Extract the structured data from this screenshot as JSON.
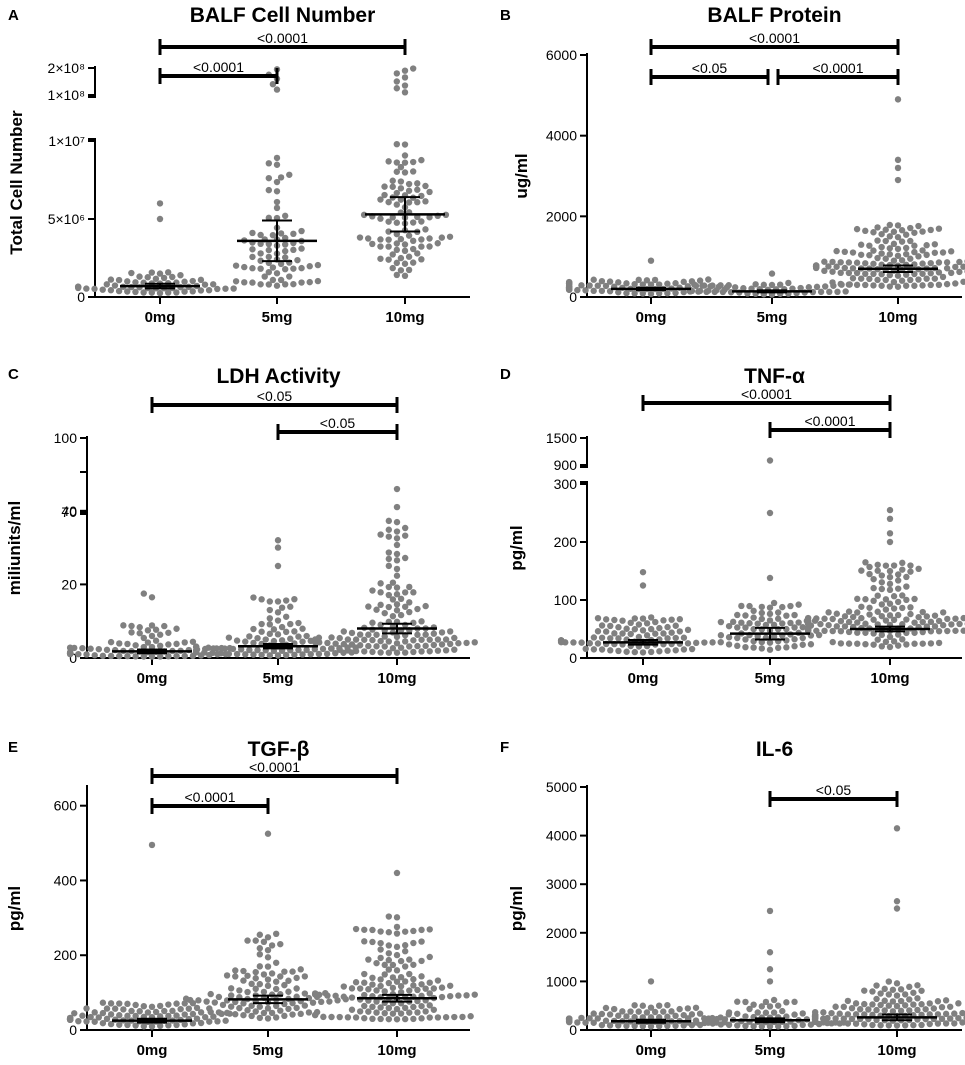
{
  "chart_data": [
    {
      "type": "scatter",
      "panel": "A",
      "title": "BALF Cell Number",
      "ylabel": "Total Cell Number",
      "categories": [
        "0mg",
        "5mg",
        "10mg"
      ],
      "axis_break": true,
      "ylim_lower": [
        0,
        10000000
      ],
      "ylim_upper": [
        100000000,
        200000000
      ],
      "yticks_lower": [
        {
          "v": 0,
          "label": "0"
        },
        {
          "v": 5000000,
          "label": "5×10⁶"
        },
        {
          "v": 10000000,
          "label": "1×10⁷"
        }
      ],
      "yticks_upper": [
        {
          "v": 100000000,
          "label": "1×10⁸"
        },
        {
          "v": 200000000,
          "label": "2×10⁸"
        }
      ],
      "summary": [
        {
          "mean": 700000,
          "err": 150000
        },
        {
          "mean": 3600000,
          "err": 1300000
        },
        {
          "mean": 5300000,
          "err": 1100000
        }
      ],
      "comparisons": [
        {
          "from": 0,
          "to": 2,
          "label": "<0.0001"
        },
        {
          "from": 0,
          "to": 1,
          "label": "<0.0001"
        }
      ],
      "points": [
        {
          "n": 60,
          "median": 450000,
          "max": 1600000,
          "outliers": [
            5000000,
            6000000
          ]
        },
        {
          "n": 75,
          "median": 1500000,
          "max": 9000000,
          "outliers": [
            120000000,
            140000000,
            160000000,
            175000000,
            195000000
          ]
        },
        {
          "n": 95,
          "median": 2800000,
          "max": 9800000,
          "outliers": [
            110000000,
            125000000,
            135000000,
            150000000,
            165000000,
            180000000,
            190000000,
            198000000
          ]
        }
      ]
    },
    {
      "type": "scatter",
      "panel": "B",
      "title": "BALF Protein",
      "ylabel": "ug/ml",
      "categories": [
        "0mg",
        "5mg",
        "10mg"
      ],
      "axis_break": false,
      "ylim": [
        0,
        6000
      ],
      "yticks": [
        {
          "v": 0,
          "label": "0"
        },
        {
          "v": 2000,
          "label": "2000"
        },
        {
          "v": 4000,
          "label": "4000"
        },
        {
          "v": 6000,
          "label": "6000"
        }
      ],
      "summary": [
        {
          "mean": 200,
          "err": 25
        },
        {
          "mean": 140,
          "err": 25
        },
        {
          "mean": 700,
          "err": 80
        }
      ],
      "comparisons": [
        {
          "from": 0,
          "to": 2,
          "label": "<0.0001"
        },
        {
          "from": 0,
          "to": 1,
          "label": "<0.05"
        },
        {
          "from": 1,
          "to": 2,
          "label": "<0.0001"
        }
      ],
      "points": [
        {
          "n": 95,
          "median": 160,
          "max": 450,
          "outliers": [
            900
          ]
        },
        {
          "n": 60,
          "median": 110,
          "max": 350,
          "outliers": [
            580
          ]
        },
        {
          "n": 150,
          "median": 500,
          "max": 1800,
          "outliers": [
            2900,
            3200,
            3400,
            4900
          ]
        }
      ]
    },
    {
      "type": "scatter",
      "panel": "C",
      "title": "LDH Activity",
      "ylabel": "miliunits/ml",
      "categories": [
        "0mg",
        "5mg",
        "10mg"
      ],
      "axis_break": true,
      "ylim_lower": [
        0,
        50
      ],
      "ylim_upper": [
        70,
        100
      ],
      "yticks_lower": [
        {
          "v": 0,
          "label": "0"
        },
        {
          "v": 20,
          "label": "20"
        },
        {
          "v": 40,
          "label": "40"
        }
      ],
      "yticks_upper": [
        {
          "v": 70,
          "label": "70"
        },
        {
          "v": 100,
          "label": "100"
        }
      ],
      "summary": [
        {
          "mean": 1.8,
          "err": 0.5
        },
        {
          "mean": 3.2,
          "err": 0.6
        },
        {
          "mean": 8.0,
          "err": 1.3
        }
      ],
      "comparisons": [
        {
          "from": 0,
          "to": 2,
          "label": "<0.05"
        },
        {
          "from": 1,
          "to": 2,
          "label": "<0.05"
        }
      ],
      "points": [
        {
          "n": 85,
          "median": 0.8,
          "max": 9,
          "outliers": [
            16.5,
            17.5
          ]
        },
        {
          "n": 95,
          "median": 1.5,
          "max": 17,
          "outliers": [
            25,
            30,
            32
          ]
        },
        {
          "n": 130,
          "median": 3,
          "max": 46,
          "outliers": [
            72
          ]
        }
      ]
    },
    {
      "type": "scatter",
      "panel": "D",
      "title": "TNF-α",
      "ylabel": "pg/ml",
      "categories": [
        "0mg",
        "5mg",
        "10mg"
      ],
      "axis_break": true,
      "ylim_lower": [
        0,
        300
      ],
      "ylim_upper": [
        900,
        1500
      ],
      "yticks_lower": [
        {
          "v": 0,
          "label": "0"
        },
        {
          "v": 100,
          "label": "100"
        },
        {
          "v": 200,
          "label": "200"
        },
        {
          "v": 300,
          "label": "300"
        }
      ],
      "yticks_upper": [
        {
          "v": 900,
          "label": "900"
        },
        {
          "v": 1500,
          "label": "1500"
        }
      ],
      "summary": [
        {
          "mean": 27,
          "err": 4
        },
        {
          "mean": 42,
          "err": 10
        },
        {
          "mean": 50,
          "err": 4
        }
      ],
      "comparisons": [
        {
          "from": 0,
          "to": 2,
          "label": "<0.0001"
        },
        {
          "from": 1,
          "to": 2,
          "label": "<0.0001"
        }
      ],
      "points": [
        {
          "n": 95,
          "median": 20,
          "max": 70,
          "outliers": [
            125,
            148
          ]
        },
        {
          "n": 75,
          "median": 30,
          "max": 100,
          "outliers": [
            138,
            250,
            1000
          ]
        },
        {
          "n": 160,
          "median": 40,
          "max": 165,
          "outliers": [
            200,
            215,
            240,
            255
          ]
        }
      ]
    },
    {
      "type": "scatter",
      "panel": "E",
      "title": "TGF-β",
      "ylabel": "pg/ml",
      "categories": [
        "0mg",
        "5mg",
        "10mg"
      ],
      "axis_break": false,
      "ylim": [
        0,
        650
      ],
      "yticks": [
        {
          "v": 0,
          "label": "0"
        },
        {
          "v": 200,
          "label": "200"
        },
        {
          "v": 400,
          "label": "400"
        },
        {
          "v": 600,
          "label": "600"
        }
      ],
      "summary": [
        {
          "mean": 25,
          "err": 5
        },
        {
          "mean": 82,
          "err": 10
        },
        {
          "mean": 85,
          "err": 9
        }
      ],
      "comparisons": [
        {
          "from": 0,
          "to": 2,
          "label": "<0.0001"
        },
        {
          "from": 0,
          "to": 1,
          "label": "<0.0001"
        }
      ],
      "points": [
        {
          "n": 100,
          "median": 20,
          "max": 75,
          "outliers": [
            495
          ]
        },
        {
          "n": 110,
          "median": 60,
          "max": 270,
          "outliers": [
            525
          ]
        },
        {
          "n": 150,
          "median": 60,
          "max": 310,
          "outliers": [
            420
          ]
        }
      ]
    },
    {
      "type": "scatter",
      "panel": "F",
      "title": "IL-6",
      "ylabel": "pg/ml",
      "categories": [
        "0mg",
        "5mg",
        "10mg"
      ],
      "axis_break": false,
      "ylim": [
        0,
        5000
      ],
      "yticks": [
        {
          "v": 0,
          "label": "0"
        },
        {
          "v": 1000,
          "label": "1000"
        },
        {
          "v": 2000,
          "label": "2000"
        },
        {
          "v": 3000,
          "label": "3000"
        },
        {
          "v": 4000,
          "label": "4000"
        },
        {
          "v": 5000,
          "label": "5000"
        }
      ],
      "summary": [
        {
          "mean": 180,
          "err": 30
        },
        {
          "mean": 200,
          "err": 40
        },
        {
          "mean": 260,
          "err": 60
        }
      ],
      "comparisons": [
        {
          "from": 1,
          "to": 2,
          "label": "<0.05"
        }
      ],
      "points": [
        {
          "n": 95,
          "median": 150,
          "max": 520,
          "outliers": [
            1000
          ]
        },
        {
          "n": 70,
          "median": 130,
          "max": 700,
          "outliers": [
            1000,
            1250,
            1600,
            2450
          ]
        },
        {
          "n": 140,
          "median": 190,
          "max": 1000,
          "outliers": [
            2500,
            2650,
            4150
          ]
        }
      ]
    }
  ]
}
